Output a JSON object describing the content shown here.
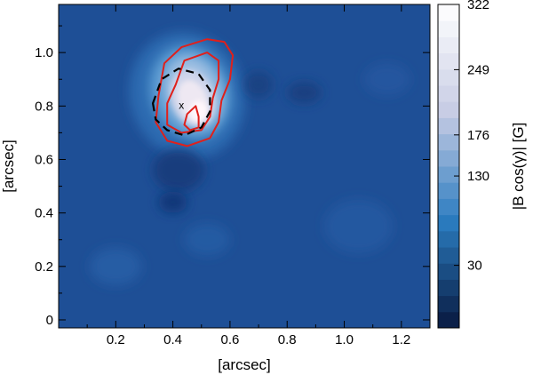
{
  "chart_data": {
    "type": "heatmap",
    "xlabel": "[arcsec]",
    "ylabel": "[arcsec]",
    "xlim": [
      0,
      1.3
    ],
    "ylim": [
      -0.03,
      1.18
    ],
    "x_ticks": [
      "0.2",
      "0.4",
      "0.6",
      "0.8",
      "1.0",
      "1.2"
    ],
    "x_tick_values": [
      0.2,
      0.4,
      0.6,
      0.8,
      1.0,
      1.2
    ],
    "y_ticks": [
      "0",
      "0.2",
      "0.4",
      "0.6",
      "0.8",
      "1.0"
    ],
    "y_tick_values": [
      0,
      0.2,
      0.4,
      0.6,
      0.8,
      1.0
    ],
    "colorbar": {
      "label": "|B cos(γ)| [G]",
      "ticks": [
        "322",
        "249",
        "176",
        "130",
        "30"
      ],
      "tick_values": [
        322,
        249,
        176,
        130,
        30
      ],
      "range": [
        -40,
        322
      ],
      "colors": [
        "#08193f",
        "#2b7cc0",
        "#c7cce4",
        "#ffffff"
      ]
    },
    "peak": {
      "marker": "x",
      "x": 0.43,
      "y": 0.8
    },
    "red_contours": [
      [
        [
          0.35,
          0.84
        ],
        [
          0.37,
          0.96
        ],
        [
          0.43,
          1.02
        ],
        [
          0.52,
          1.05
        ],
        [
          0.58,
          1.04
        ],
        [
          0.61,
          0.99
        ],
        [
          0.6,
          0.9
        ],
        [
          0.57,
          0.82
        ],
        [
          0.56,
          0.74
        ],
        [
          0.53,
          0.68
        ],
        [
          0.45,
          0.65
        ],
        [
          0.38,
          0.67
        ],
        [
          0.34,
          0.74
        ]
      ],
      [
        [
          0.41,
          0.88
        ],
        [
          0.44,
          0.97
        ],
        [
          0.52,
          1.0
        ],
        [
          0.56,
          0.97
        ],
        [
          0.56,
          0.9
        ],
        [
          0.54,
          0.83
        ],
        [
          0.53,
          0.76
        ],
        [
          0.5,
          0.71
        ],
        [
          0.43,
          0.7
        ],
        [
          0.38,
          0.73
        ],
        [
          0.38,
          0.81
        ]
      ],
      [
        [
          0.44,
          0.73
        ],
        [
          0.45,
          0.77
        ],
        [
          0.48,
          0.8
        ],
        [
          0.49,
          0.76
        ],
        [
          0.49,
          0.72
        ],
        [
          0.46,
          0.71
        ]
      ]
    ],
    "dashed_contour": [
      [
        0.33,
        0.81
      ],
      [
        0.36,
        0.9
      ],
      [
        0.42,
        0.94
      ],
      [
        0.49,
        0.92
      ],
      [
        0.53,
        0.86
      ],
      [
        0.53,
        0.78
      ],
      [
        0.5,
        0.72
      ],
      [
        0.44,
        0.69
      ],
      [
        0.38,
        0.71
      ],
      [
        0.34,
        0.75
      ]
    ]
  }
}
